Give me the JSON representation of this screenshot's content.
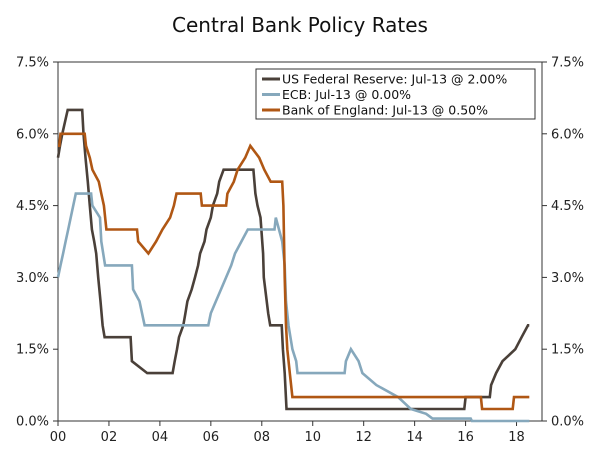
{
  "chart_data": {
    "type": "line",
    "title": "Central Bank Policy Rates",
    "xlabel": "",
    "ylabel": "",
    "xlim": [
      2000,
      2019
    ],
    "ylim": [
      0,
      7.5
    ],
    "x_ticks": [
      {
        "value": 2000,
        "label": "00"
      },
      {
        "value": 2002,
        "label": "02"
      },
      {
        "value": 2004,
        "label": "04"
      },
      {
        "value": 2006,
        "label": "06"
      },
      {
        "value": 2008,
        "label": "08"
      },
      {
        "value": 2010,
        "label": "10"
      },
      {
        "value": 2012,
        "label": "12"
      },
      {
        "value": 2014,
        "label": "14"
      },
      {
        "value": 2016,
        "label": "16"
      },
      {
        "value": 2018,
        "label": "18"
      }
    ],
    "y_ticks": [
      {
        "value": 0,
        "label": "0.0%"
      },
      {
        "value": 1.5,
        "label": "1.5%"
      },
      {
        "value": 3,
        "label": "3.0%"
      },
      {
        "value": 4.5,
        "label": "4.5%"
      },
      {
        "value": 6,
        "label": "6.0%"
      },
      {
        "value": 7.5,
        "label": "7.5%"
      }
    ],
    "grid": false,
    "legend_position": "top-right",
    "series": [
      {
        "name": "US Federal Reserve: Jul-13 @ 2.00%",
        "color": "#4a4039",
        "points": [
          [
            2000.0,
            5.5
          ],
          [
            2000.08,
            5.75
          ],
          [
            2000.17,
            6.0
          ],
          [
            2000.38,
            6.5
          ],
          [
            2000.95,
            6.5
          ],
          [
            2001.0,
            6.0
          ],
          [
            2001.08,
            5.5
          ],
          [
            2001.17,
            5.0
          ],
          [
            2001.25,
            4.5
          ],
          [
            2001.33,
            4.0
          ],
          [
            2001.42,
            3.75
          ],
          [
            2001.5,
            3.5
          ],
          [
            2001.58,
            3.0
          ],
          [
            2001.67,
            2.5
          ],
          [
            2001.75,
            2.0
          ],
          [
            2001.83,
            1.75
          ],
          [
            2002.85,
            1.75
          ],
          [
            2002.9,
            1.25
          ],
          [
            2003.5,
            1.0
          ],
          [
            2004.5,
            1.0
          ],
          [
            2004.58,
            1.25
          ],
          [
            2004.67,
            1.5
          ],
          [
            2004.75,
            1.75
          ],
          [
            2004.92,
            2.0
          ],
          [
            2005.0,
            2.25
          ],
          [
            2005.08,
            2.5
          ],
          [
            2005.25,
            2.75
          ],
          [
            2005.38,
            3.0
          ],
          [
            2005.5,
            3.25
          ],
          [
            2005.58,
            3.5
          ],
          [
            2005.75,
            3.75
          ],
          [
            2005.83,
            4.0
          ],
          [
            2006.0,
            4.25
          ],
          [
            2006.08,
            4.5
          ],
          [
            2006.25,
            4.75
          ],
          [
            2006.33,
            5.0
          ],
          [
            2006.5,
            5.25
          ],
          [
            2007.67,
            5.25
          ],
          [
            2007.75,
            4.75
          ],
          [
            2007.83,
            4.5
          ],
          [
            2007.95,
            4.25
          ],
          [
            2008.05,
            3.5
          ],
          [
            2008.08,
            3.0
          ],
          [
            2008.25,
            2.25
          ],
          [
            2008.33,
            2.0
          ],
          [
            2008.78,
            2.0
          ],
          [
            2008.83,
            1.5
          ],
          [
            2008.9,
            1.0
          ],
          [
            2008.97,
            0.25
          ],
          [
            2015.95,
            0.25
          ],
          [
            2016.0,
            0.5
          ],
          [
            2016.95,
            0.5
          ],
          [
            2017.0,
            0.75
          ],
          [
            2017.2,
            1.0
          ],
          [
            2017.45,
            1.25
          ],
          [
            2017.95,
            1.5
          ],
          [
            2018.2,
            1.75
          ],
          [
            2018.45,
            2.0
          ],
          [
            2018.5,
            2.0
          ]
        ]
      },
      {
        "name": "ECB: Jul-13 @ 0.00%",
        "color": "#86a8bc",
        "points": [
          [
            2000.0,
            3.0
          ],
          [
            2000.1,
            3.25
          ],
          [
            2000.2,
            3.5
          ],
          [
            2000.3,
            3.75
          ],
          [
            2000.4,
            4.0
          ],
          [
            2000.5,
            4.25
          ],
          [
            2000.7,
            4.75
          ],
          [
            2001.3,
            4.75
          ],
          [
            2001.35,
            4.5
          ],
          [
            2001.65,
            4.25
          ],
          [
            2001.7,
            3.75
          ],
          [
            2001.85,
            3.25
          ],
          [
            2002.9,
            3.25
          ],
          [
            2002.95,
            2.75
          ],
          [
            2003.2,
            2.5
          ],
          [
            2003.4,
            2.0
          ],
          [
            2005.9,
            2.0
          ],
          [
            2006.0,
            2.25
          ],
          [
            2006.2,
            2.5
          ],
          [
            2006.4,
            2.75
          ],
          [
            2006.6,
            3.0
          ],
          [
            2006.8,
            3.25
          ],
          [
            2006.95,
            3.5
          ],
          [
            2007.2,
            3.75
          ],
          [
            2007.45,
            4.0
          ],
          [
            2008.5,
            4.0
          ],
          [
            2008.55,
            4.25
          ],
          [
            2008.8,
            3.75
          ],
          [
            2008.9,
            3.25
          ],
          [
            2008.95,
            2.5
          ],
          [
            2009.05,
            2.0
          ],
          [
            2009.2,
            1.5
          ],
          [
            2009.35,
            1.25
          ],
          [
            2009.4,
            1.0
          ],
          [
            2011.25,
            1.0
          ],
          [
            2011.3,
            1.25
          ],
          [
            2011.5,
            1.5
          ],
          [
            2011.8,
            1.25
          ],
          [
            2011.95,
            1.0
          ],
          [
            2012.5,
            0.75
          ],
          [
            2013.35,
            0.5
          ],
          [
            2013.85,
            0.25
          ],
          [
            2014.45,
            0.15
          ],
          [
            2014.7,
            0.05
          ],
          [
            2016.2,
            0.05
          ],
          [
            2016.25,
            0.0
          ],
          [
            2018.5,
            0.0
          ]
        ]
      },
      {
        "name": "Bank of England: Jul-13 @ 0.50%",
        "color": "#b05714",
        "points": [
          [
            2000.0,
            5.75
          ],
          [
            2000.05,
            5.75
          ],
          [
            2000.1,
            6.0
          ],
          [
            2001.05,
            6.0
          ],
          [
            2001.1,
            5.75
          ],
          [
            2001.25,
            5.5
          ],
          [
            2001.35,
            5.25
          ],
          [
            2001.6,
            5.0
          ],
          [
            2001.7,
            4.75
          ],
          [
            2001.8,
            4.5
          ],
          [
            2001.9,
            4.0
          ],
          [
            2003.1,
            4.0
          ],
          [
            2003.15,
            3.75
          ],
          [
            2003.55,
            3.5
          ],
          [
            2003.85,
            3.75
          ],
          [
            2004.1,
            4.0
          ],
          [
            2004.4,
            4.25
          ],
          [
            2004.55,
            4.5
          ],
          [
            2004.65,
            4.75
          ],
          [
            2005.6,
            4.75
          ],
          [
            2005.65,
            4.5
          ],
          [
            2006.6,
            4.5
          ],
          [
            2006.65,
            4.75
          ],
          [
            2006.9,
            5.0
          ],
          [
            2007.05,
            5.25
          ],
          [
            2007.35,
            5.5
          ],
          [
            2007.55,
            5.75
          ],
          [
            2007.9,
            5.5
          ],
          [
            2008.1,
            5.25
          ],
          [
            2008.35,
            5.0
          ],
          [
            2008.8,
            5.0
          ],
          [
            2008.85,
            4.5
          ],
          [
            2008.9,
            3.0
          ],
          [
            2008.95,
            2.0
          ],
          [
            2009.0,
            1.5
          ],
          [
            2009.1,
            1.0
          ],
          [
            2009.2,
            0.5
          ],
          [
            2016.6,
            0.5
          ],
          [
            2016.65,
            0.25
          ],
          [
            2017.85,
            0.25
          ],
          [
            2017.9,
            0.5
          ],
          [
            2018.5,
            0.5
          ]
        ]
      }
    ]
  }
}
